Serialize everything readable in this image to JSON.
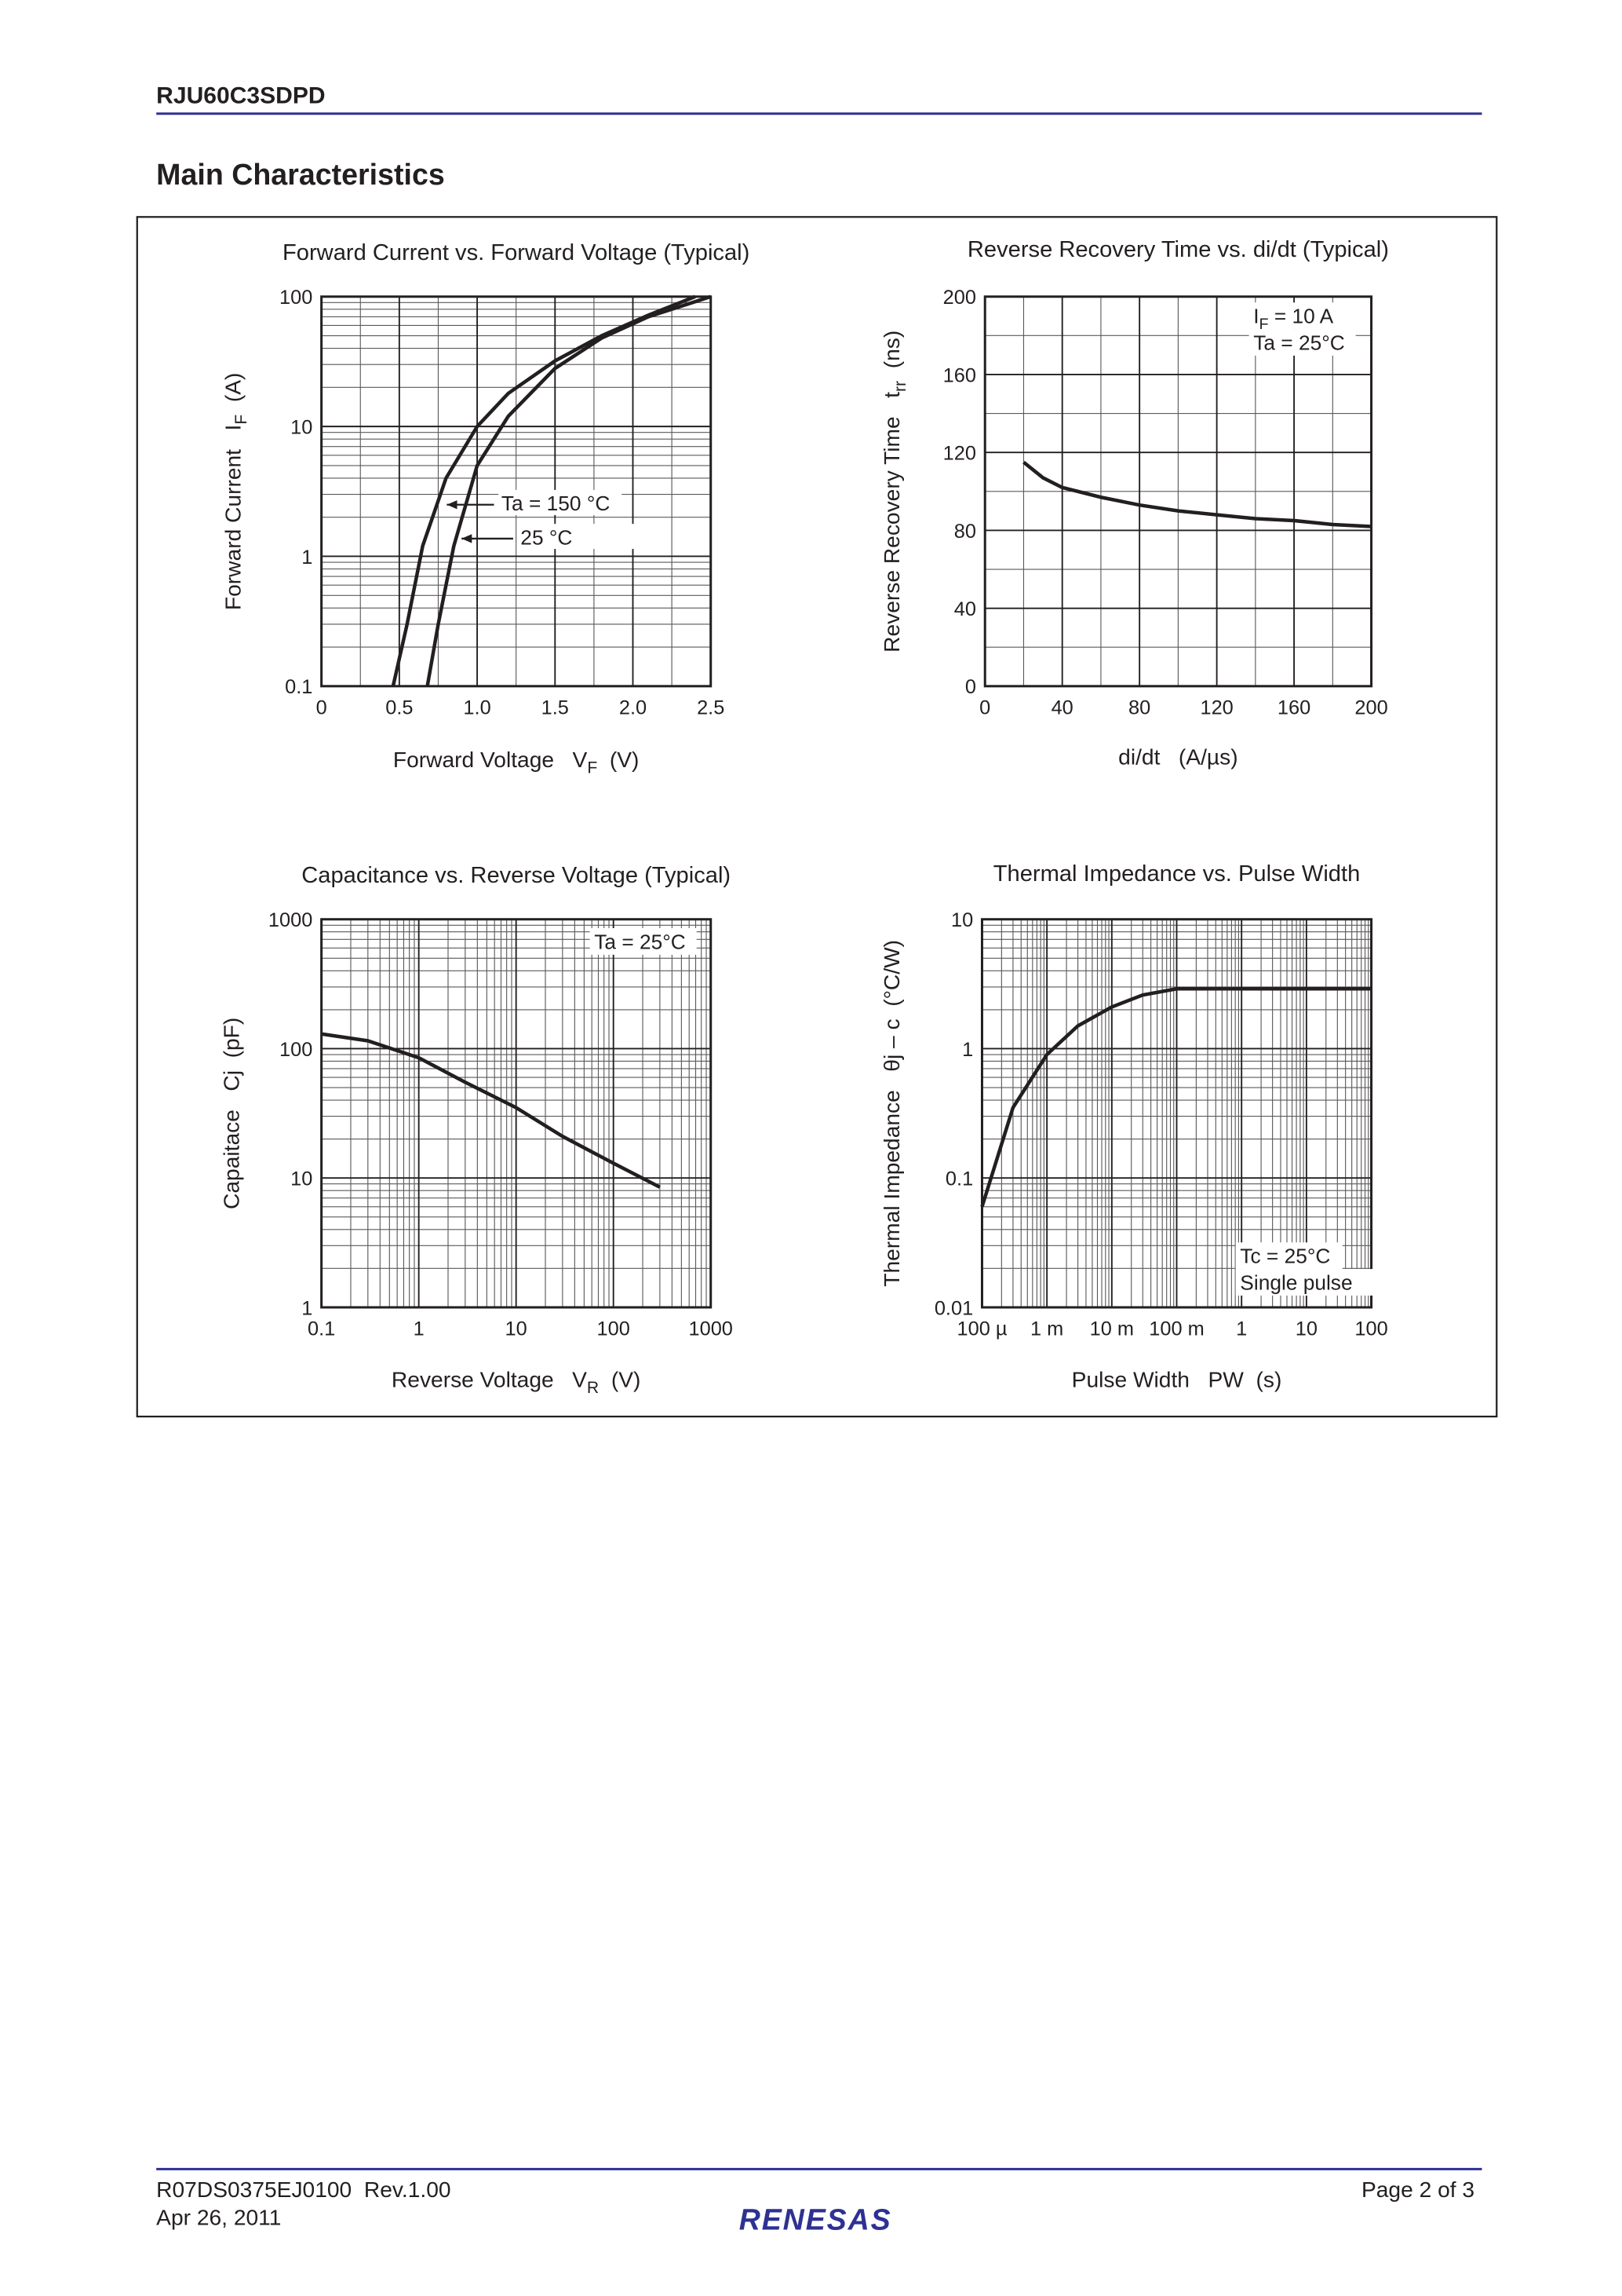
{
  "header": {
    "part_number": "RJU60C3SDPD"
  },
  "section_title": "Main Characteristics",
  "chart_data": [
    {
      "type": "line",
      "title": "Forward Current vs. Forward Voltage (Typical)",
      "xlabel": {
        "text": "Forward Voltage   V",
        "sub": "F",
        "after": "  (V)"
      },
      "ylabel": {
        "text": "Forward Current   I",
        "sub": "F",
        "after": "  (A)"
      },
      "xlim": [
        0,
        2.5
      ],
      "ylim": [
        0.1,
        100
      ],
      "ylog": true,
      "xticks": [
        0,
        0.5,
        {
          "value": 1,
          "label": "1.0"
        },
        1.5,
        {
          "value": 2,
          "label": "2.0"
        },
        2.5
      ],
      "yticks": [
        0.1,
        1,
        10,
        100
      ],
      "grid": true,
      "series": [
        {
          "name": "Ta = 150 °C",
          "color": "#231f20",
          "x": [
            0.46,
            0.55,
            0.65,
            0.8,
            1.0,
            1.2,
            1.5,
            1.8,
            2.1,
            2.4
          ],
          "values": [
            0.1,
            0.3,
            1.2,
            4,
            10,
            18,
            32,
            50,
            72,
            100
          ]
        },
        {
          "name": "25 °C",
          "color": "#231f20",
          "x": [
            0.68,
            0.75,
            0.85,
            1.0,
            1.2,
            1.5,
            1.8,
            2.1,
            2.5
          ],
          "values": [
            0.1,
            0.3,
            1.2,
            5,
            12,
            28,
            48,
            70,
            100
          ]
        }
      ]
    },
    {
      "type": "line",
      "title": "Reverse Recovery Time vs. di/dt (Typical)",
      "xlabel": {
        "text": "di/dt   (A/µs)"
      },
      "ylabel": {
        "text": "Reverse Recovery Time   t",
        "sub": "rr",
        "after": "  (ns)"
      },
      "xlim": [
        0,
        200
      ],
      "ylim": [
        0,
        200
      ],
      "xticks": [
        0,
        40,
        80,
        120,
        160,
        200
      ],
      "yticks": [
        0,
        40,
        80,
        120,
        160,
        200
      ],
      "grid": true,
      "annotations": [
        {
          "text": "I",
          "sub": "F",
          "after": " = 10 A"
        },
        {
          "text": "Ta = 25°C"
        }
      ],
      "series": [
        {
          "color": "#231f20",
          "x": [
            20,
            30,
            40,
            60,
            80,
            100,
            120,
            140,
            160,
            180,
            200
          ],
          "values": [
            115,
            107,
            102,
            97,
            93,
            90,
            88,
            86,
            85,
            83,
            82
          ]
        }
      ]
    },
    {
      "type": "line",
      "title": "Capacitance vs. Reverse Voltage (Typical)",
      "xlabel": {
        "text": "Reverse Voltage   V",
        "sub": "R",
        "after": "  (V)"
      },
      "ylabel": {
        "text": "Capaitace   Cj  (pF)"
      },
      "xlim": [
        0.1,
        1000
      ],
      "ylim": [
        1,
        1000
      ],
      "xlog": true,
      "ylog": true,
      "xticks": [
        0.1,
        1,
        10,
        100,
        1000
      ],
      "yticks": [
        1,
        10,
        100,
        1000
      ],
      "grid": true,
      "annotations": [
        {
          "text": "Ta = 25°C"
        }
      ],
      "series": [
        {
          "color": "#231f20",
          "x": [
            0.1,
            0.3,
            1,
            3,
            10,
            30,
            100,
            300
          ],
          "values": [
            130,
            115,
            85,
            55,
            35,
            21,
            13,
            8.5
          ]
        }
      ]
    },
    {
      "type": "line",
      "title": "Thermal Impedance vs. Pulse Width",
      "xlabel": {
        "text": "Pulse Width   PW  (s)"
      },
      "ylabel": {
        "text": "Thermal Impedance   θj – c  (°C/W)"
      },
      "xlim": [
        0.0001,
        100
      ],
      "ylim": [
        0.01,
        10
      ],
      "xlog": true,
      "ylog": true,
      "xticks": [
        {
          "value": 0.0001,
          "label": "100 µ"
        },
        {
          "value": 0.001,
          "label": "1 m"
        },
        {
          "value": 0.01,
          "label": "10 m"
        },
        {
          "value": 0.1,
          "label": "100 m"
        },
        1,
        10,
        100
      ],
      "yticks": [
        0.01,
        0.1,
        1,
        10
      ],
      "grid": true,
      "annotations": [
        {
          "text": "Tc = 25°C"
        },
        {
          "text": "Single pulse"
        }
      ],
      "series": [
        {
          "color": "#231f20",
          "x": [
            0.0001,
            0.0003,
            0.001,
            0.003,
            0.01,
            0.03,
            0.1,
            0.3,
            1,
            100
          ],
          "values": [
            0.06,
            0.35,
            0.9,
            1.5,
            2.1,
            2.6,
            2.9,
            2.9,
            2.9,
            2.9
          ]
        }
      ]
    }
  ],
  "footer": {
    "doc_number": "R07DS0375EJ0100  Rev.1.00",
    "date": "Apr 26, 2011",
    "page": "Page 2 of 3",
    "logo": "RENESAS"
  }
}
